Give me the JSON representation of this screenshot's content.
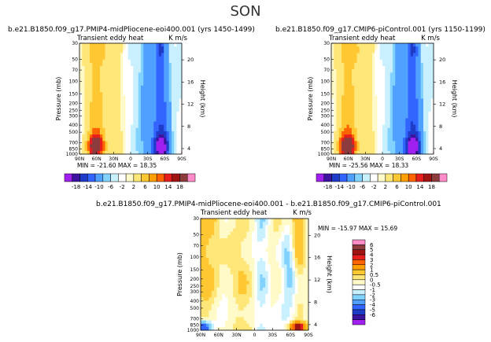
{
  "page_title": "SON",
  "chart_data": [
    {
      "type": "heatmap",
      "title": "b.e21.B1850.f09_g17.PMIP4-midPliocene-eoi400.001  (yrs 1450-1499)",
      "subtitle_left": "Transient eddy heat",
      "units": "K m/s",
      "xlabel": "",
      "ylabel": "Pressure (mb)",
      "ylabel_right": "Height (km)",
      "x_ticks": [
        "90N",
        "60N",
        "30N",
        "0",
        "30S",
        "60S",
        "90S"
      ],
      "y_ticks": [
        "30",
        "50",
        "70",
        "100",
        "150",
        "200",
        "250",
        "300",
        "400",
        "500",
        "700",
        "850",
        "1000"
      ],
      "y_ticks_right": [
        "20",
        "16",
        "12",
        "8",
        "4"
      ],
      "stats_text": "MIN = -21.60   MAX = 18.35",
      "min": -21.6,
      "max": 18.35,
      "colorbar_labels": [
        "-18",
        "-14",
        "-10",
        "-6",
        "-2",
        "2",
        "6",
        "10",
        "14",
        "18"
      ]
    },
    {
      "type": "heatmap",
      "title": "b.e21.B1850.f09_g17.CMIP6-piControl.001  (yrs 1150-1199)",
      "subtitle_left": "Transient eddy heat",
      "units": "K m/s",
      "xlabel": "",
      "ylabel": "Pressure (mb)",
      "ylabel_right": "Height (km)",
      "x_ticks": [
        "90N",
        "60N",
        "30N",
        "0",
        "30S",
        "60S",
        "90S"
      ],
      "y_ticks": [
        "30",
        "50",
        "70",
        "100",
        "150",
        "200",
        "250",
        "300",
        "400",
        "500",
        "700",
        "850",
        "1000"
      ],
      "y_ticks_right": [
        "20",
        "16",
        "12",
        "8",
        "4"
      ],
      "stats_text": "MIN = -25.56   MAX = 18.33",
      "min": -25.56,
      "max": 18.33,
      "colorbar_labels": [
        "-18",
        "-14",
        "-10",
        "-6",
        "-2",
        "2",
        "6",
        "10",
        "14",
        "18"
      ]
    },
    {
      "type": "heatmap",
      "title": "b.e21.B1850.f09_g17.PMIP4-midPliocene-eoi400.001  -  b.e21.B1850.f09_g17.CMIP6-piControl.001",
      "subtitle_left": "Transient eddy heat",
      "units": "K m/s",
      "xlabel": "",
      "ylabel": "Pressure (mb)",
      "ylabel_right": "Height (km)",
      "x_ticks": [
        "90N",
        "60N",
        "30N",
        "0",
        "30S",
        "60S",
        "90S"
      ],
      "y_ticks": [
        "30",
        "50",
        "70",
        "100",
        "150",
        "200",
        "250",
        "300",
        "400",
        "500",
        "700",
        "850",
        "1000"
      ],
      "y_ticks_right": [
        "20",
        "16",
        "12",
        "8",
        "4"
      ],
      "stats_text": "MIN = -15.97   MAX = 15.69",
      "min": -15.97,
      "max": 15.69,
      "colorbar_labels": [
        "6",
        "5",
        "4",
        "3",
        "2",
        "1",
        "0.5",
        "0",
        "-0.5",
        "-1",
        "-2",
        "-3",
        "-4",
        "-5",
        "-6"
      ]
    }
  ],
  "colors": {
    "top_scale": [
      "#a020f0",
      "#3c14a0",
      "#1e3cc8",
      "#3264ff",
      "#50a0ff",
      "#82d2ff",
      "#c8f0ff",
      "#ffffff",
      "#fffac8",
      "#ffe678",
      "#ffc832",
      "#ffa000",
      "#ff6400",
      "#e61e1e",
      "#a01414",
      "#8c3c3c",
      "#ff8cc8"
    ],
    "diff_scale": [
      "#ff8cc8",
      "#8c3c3c",
      "#a01414",
      "#e61e1e",
      "#ff6400",
      "#ffa000",
      "#ffc832",
      "#ffe678",
      "#fffac8",
      "#ffffff",
      "#c8f0ff",
      "#82d2ff",
      "#50a0ff",
      "#3264ff",
      "#1e3cc8",
      "#3c14a0",
      "#a020f0"
    ]
  }
}
